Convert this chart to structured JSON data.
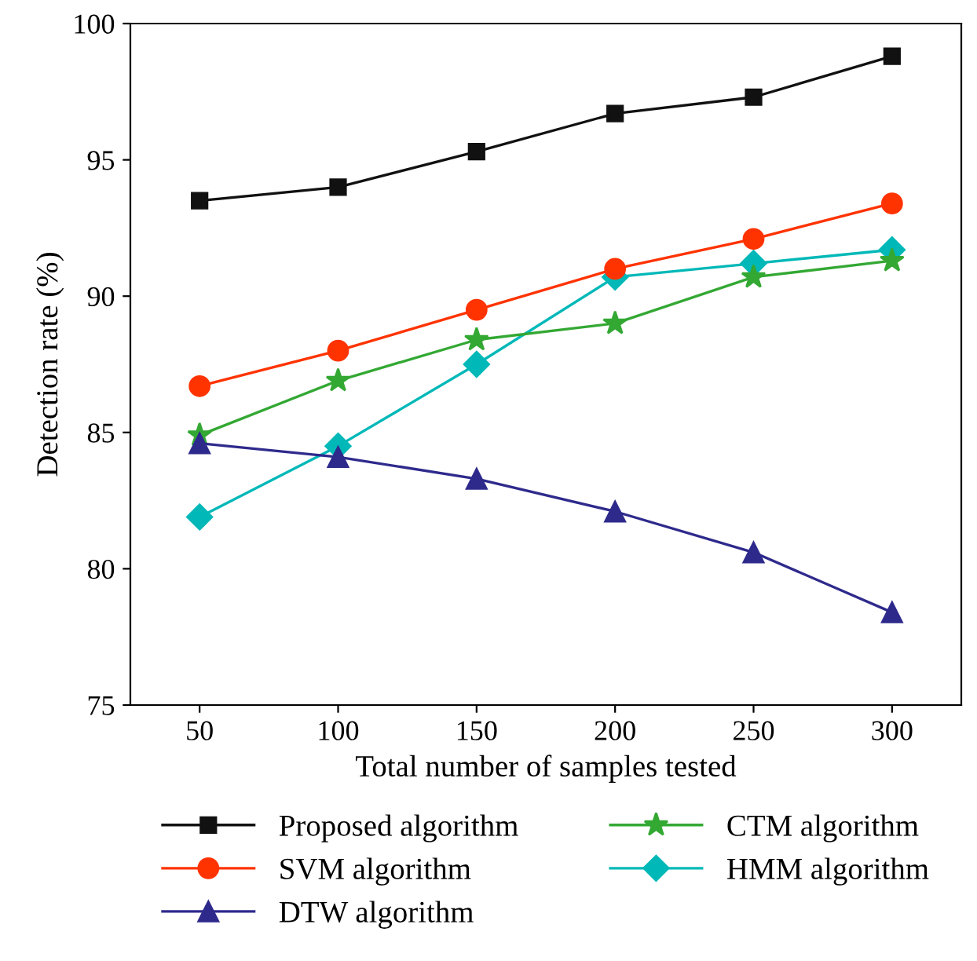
{
  "chart_data": {
    "type": "line",
    "xlabel": "Total number of samples tested",
    "ylabel": "Detection rate (%)",
    "x": [
      50,
      100,
      150,
      200,
      250,
      300
    ],
    "xlim": [
      25,
      325
    ],
    "xticks": [
      50,
      100,
      150,
      200,
      250,
      300
    ],
    "ylim": [
      75,
      100
    ],
    "yticks": [
      75,
      80,
      85,
      90,
      95,
      100
    ],
    "grid": false,
    "legend": "bottom",
    "line_style": "solid",
    "series": [
      {
        "name": "Proposed algorithm",
        "color": "#111111",
        "marker": "square",
        "values": [
          93.5,
          94.0,
          95.3,
          96.7,
          97.3,
          98.8
        ]
      },
      {
        "name": "SVM algorithm",
        "color": "#ff3300",
        "marker": "circle",
        "values": [
          86.7,
          88.0,
          89.5,
          91.0,
          92.1,
          93.4
        ]
      },
      {
        "name": "DTW algorithm",
        "color": "#2e2a8c",
        "marker": "triangle",
        "values": [
          84.6,
          84.1,
          83.3,
          82.1,
          80.6,
          78.4
        ]
      },
      {
        "name": "CTM algorithm",
        "color": "#33a833",
        "marker": "star",
        "values": [
          84.9,
          86.9,
          88.4,
          89.0,
          90.7,
          91.3
        ]
      },
      {
        "name": "HMM algorithm",
        "color": "#00b8b8",
        "marker": "diamond",
        "values": [
          81.9,
          84.5,
          87.5,
          90.7,
          91.2,
          91.7
        ]
      }
    ]
  }
}
